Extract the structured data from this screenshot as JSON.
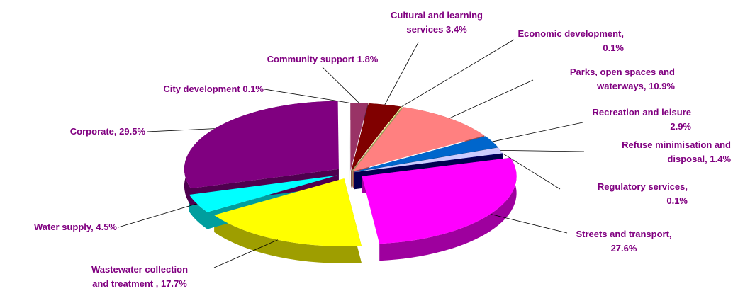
{
  "chart_data": {
    "type": "pie",
    "title": "",
    "slices": [
      {
        "label_lines": [
          "Community support 1.8%"
        ],
        "value": 1.8,
        "color": "#993366"
      },
      {
        "label_lines": [
          "Cultural and learning",
          "services 3.4%"
        ],
        "value": 3.4,
        "color": "#800000"
      },
      {
        "label_lines": [
          "Economic development,",
          "0.1%"
        ],
        "value": 0.1,
        "color": "#ffff99"
      },
      {
        "label_lines": [
          "Parks, open spaces and",
          "waterways, 10.9%"
        ],
        "value": 10.9,
        "color": "#ff8080"
      },
      {
        "label_lines": [
          "Recreation and leisure",
          "2.9%"
        ],
        "value": 2.9,
        "color": "#0066cc"
      },
      {
        "label_lines": [
          "Refuse minimisation and",
          "disposal, 1.4%"
        ],
        "value": 1.4,
        "color": "#ccccff"
      },
      {
        "label_lines": [
          "Regulatory services,",
          "0.1%"
        ],
        "value": 0.1,
        "color": "#000080"
      },
      {
        "label_lines": [
          "Streets and transport,",
          "27.6%"
        ],
        "value": 27.6,
        "color": "#ff00ff"
      },
      {
        "label_lines": [
          "Wastewater collection",
          "and treatment , 17.7%"
        ],
        "value": 17.7,
        "color": "#ffff00"
      },
      {
        "label_lines": [
          "Water supply, 4.5%"
        ],
        "value": 4.5,
        "color": "#00ffff"
      },
      {
        "label_lines": [
          "Corporate, 29.5%"
        ],
        "value": 29.5,
        "color": "#800080"
      },
      {
        "label_lines": [
          "City development 0.1%"
        ],
        "value": 0.1,
        "color": "#ffffff"
      }
    ]
  }
}
